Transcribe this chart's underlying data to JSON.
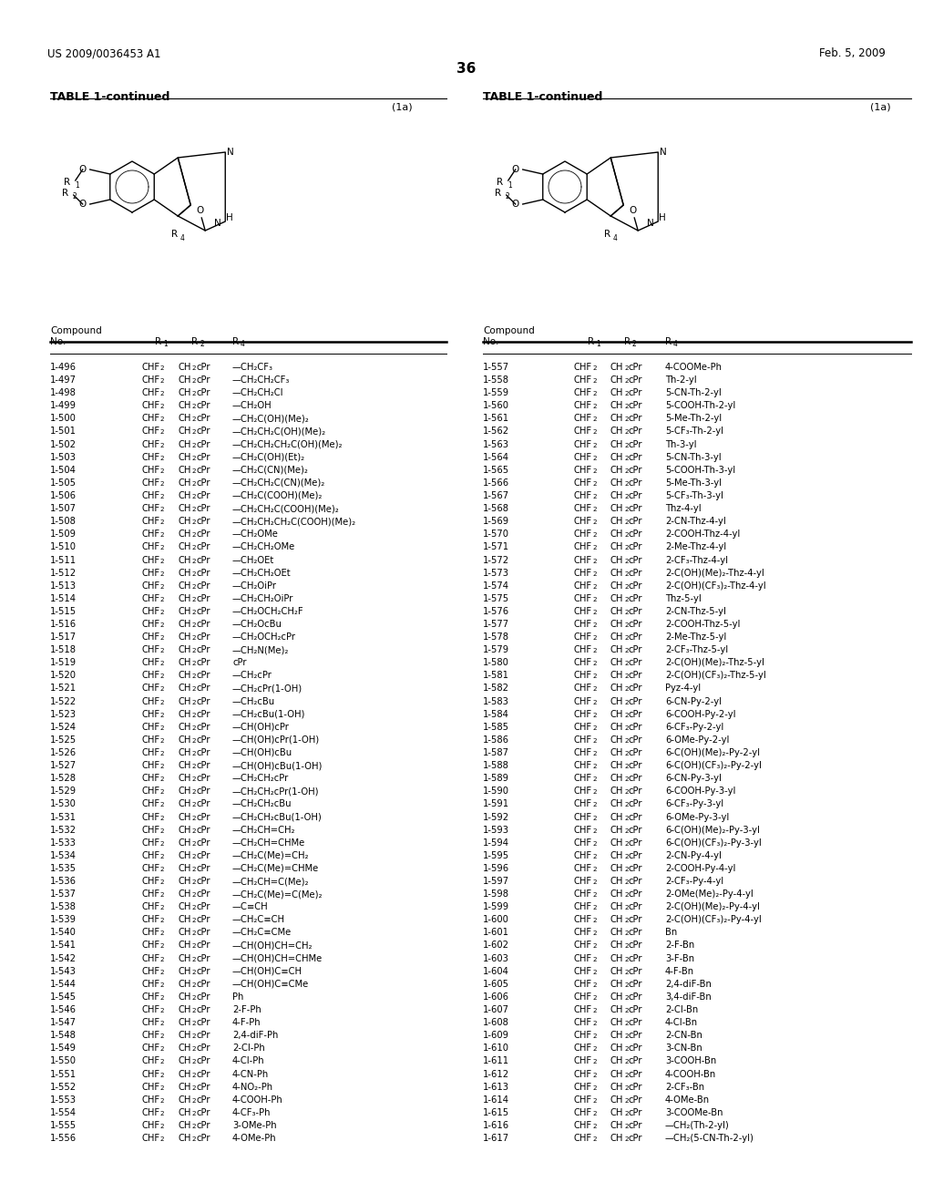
{
  "title_left": "US 2009/0036453 A1",
  "title_right": "Feb. 5, 2009",
  "page_number": "36",
  "table_title": "TABLE 1-continued",
  "formula_label": "(1a)",
  "left_compounds": [
    [
      "1-496",
      "—CH₂CF₃"
    ],
    [
      "1-497",
      "—CH₂CH₂CF₃"
    ],
    [
      "1-498",
      "—CH₂CH₂Cl"
    ],
    [
      "1-499",
      "—CH₂OH"
    ],
    [
      "1-500",
      "—CH₂C(OH)(Me)₂"
    ],
    [
      "1-501",
      "—CH₂CH₂C(OH)(Me)₂"
    ],
    [
      "1-502",
      "—CH₂CH₂CH₂C(OH)(Me)₂"
    ],
    [
      "1-503",
      "—CH₂C(OH)(Et)₂"
    ],
    [
      "1-504",
      "—CH₂C(CN)(Me)₂"
    ],
    [
      "1-505",
      "—CH₂CH₂C(CN)(Me)₂"
    ],
    [
      "1-506",
      "—CH₂C(COOH)(Me)₂"
    ],
    [
      "1-507",
      "—CH₂CH₂C(COOH)(Me)₂"
    ],
    [
      "1-508",
      "—CH₂CH₂CH₂C(COOH)(Me)₂"
    ],
    [
      "1-509",
      "—CH₂OMe"
    ],
    [
      "1-510",
      "—CH₂CH₂OMe"
    ],
    [
      "1-511",
      "—CH₂OEt"
    ],
    [
      "1-512",
      "—CH₂CH₂OEt"
    ],
    [
      "1-513",
      "—CH₂OiPr"
    ],
    [
      "1-514",
      "—CH₂CH₂OiPr"
    ],
    [
      "1-515",
      "—CH₂OCH₂CH₂F"
    ],
    [
      "1-516",
      "—CH₂OcBu"
    ],
    [
      "1-517",
      "—CH₂OCH₂cPr"
    ],
    [
      "1-518",
      "—CH₂N(Me)₂"
    ],
    [
      "1-519",
      "cPr"
    ],
    [
      "1-520",
      "—CH₂cPr"
    ],
    [
      "1-521",
      "—CH₂cPr(1-OH)"
    ],
    [
      "1-522",
      "—CH₂cBu"
    ],
    [
      "1-523",
      "—CH₂cBu(1-OH)"
    ],
    [
      "1-524",
      "—CH(OH)cPr"
    ],
    [
      "1-525",
      "—CH(OH)cPr(1-OH)"
    ],
    [
      "1-526",
      "—CH(OH)cBu"
    ],
    [
      "1-527",
      "—CH(OH)cBu(1-OH)"
    ],
    [
      "1-528",
      "—CH₂CH₂cPr"
    ],
    [
      "1-529",
      "—CH₂CH₂cPr(1-OH)"
    ],
    [
      "1-530",
      "—CH₂CH₂cBu"
    ],
    [
      "1-531",
      "—CH₂CH₂cBu(1-OH)"
    ],
    [
      "1-532",
      "—CH₂CH=CH₂"
    ],
    [
      "1-533",
      "—CH₂CH=CHMe"
    ],
    [
      "1-534",
      "—CH₂C(Me)=CH₂"
    ],
    [
      "1-535",
      "—CH₂C(Me)=CHMe"
    ],
    [
      "1-536",
      "—CH₂CH=C(Me)₂"
    ],
    [
      "1-537",
      "—CH₂C(Me)=C(Me)₂"
    ],
    [
      "1-538",
      "—C≡CH"
    ],
    [
      "1-539",
      "—CH₂C≡CH"
    ],
    [
      "1-540",
      "—CH₂C≡CMe"
    ],
    [
      "1-541",
      "—CH(OH)CH=CH₂"
    ],
    [
      "1-542",
      "—CH(OH)CH=CHMe"
    ],
    [
      "1-543",
      "—CH(OH)C≡CH"
    ],
    [
      "1-544",
      "—CH(OH)C≡CMe"
    ],
    [
      "1-545",
      "Ph"
    ],
    [
      "1-546",
      "2-F-Ph"
    ],
    [
      "1-547",
      "4-F-Ph"
    ],
    [
      "1-548",
      "2,4-diF-Ph"
    ],
    [
      "1-549",
      "2-Cl-Ph"
    ],
    [
      "1-550",
      "4-Cl-Ph"
    ],
    [
      "1-551",
      "4-CN-Ph"
    ],
    [
      "1-552",
      "4-NO₂-Ph"
    ],
    [
      "1-553",
      "4-COOH-Ph"
    ],
    [
      "1-554",
      "4-CF₃-Ph"
    ],
    [
      "1-555",
      "3-OMe-Ph"
    ],
    [
      "1-556",
      "4-OMe-Ph"
    ]
  ],
  "right_compounds": [
    [
      "1-557",
      "4-COOMe-Ph"
    ],
    [
      "1-558",
      "Th-2-yl"
    ],
    [
      "1-559",
      "5-CN-Th-2-yl"
    ],
    [
      "1-560",
      "5-COOH-Th-2-yl"
    ],
    [
      "1-561",
      "5-Me-Th-2-yl"
    ],
    [
      "1-562",
      "5-CF₃-Th-2-yl"
    ],
    [
      "1-563",
      "Th-3-yl"
    ],
    [
      "1-564",
      "5-CN-Th-3-yl"
    ],
    [
      "1-565",
      "5-COOH-Th-3-yl"
    ],
    [
      "1-566",
      "5-Me-Th-3-yl"
    ],
    [
      "1-567",
      "5-CF₃-Th-3-yl"
    ],
    [
      "1-568",
      "Thz-4-yl"
    ],
    [
      "1-569",
      "2-CN-Thz-4-yl"
    ],
    [
      "1-570",
      "2-COOH-Thz-4-yl"
    ],
    [
      "1-571",
      "2-Me-Thz-4-yl"
    ],
    [
      "1-572",
      "2-CF₃-Thz-4-yl"
    ],
    [
      "1-573",
      "2-C(OH)(Me)₂-Thz-4-yl"
    ],
    [
      "1-574",
      "2-C(OH)(CF₃)₂-Thz-4-yl"
    ],
    [
      "1-575",
      "Thz-5-yl"
    ],
    [
      "1-576",
      "2-CN-Thz-5-yl"
    ],
    [
      "1-577",
      "2-COOH-Thz-5-yl"
    ],
    [
      "1-578",
      "2-Me-Thz-5-yl"
    ],
    [
      "1-579",
      "2-CF₃-Thz-5-yl"
    ],
    [
      "1-580",
      "2-C(OH)(Me)₂-Thz-5-yl"
    ],
    [
      "1-581",
      "2-C(OH)(CF₃)₂-Thz-5-yl"
    ],
    [
      "1-582",
      "Pyz-4-yl"
    ],
    [
      "1-583",
      "6-CN-Py-2-yl"
    ],
    [
      "1-584",
      "6-COOH-Py-2-yl"
    ],
    [
      "1-585",
      "6-CF₃-Py-2-yl"
    ],
    [
      "1-586",
      "6-OMe-Py-2-yl"
    ],
    [
      "1-587",
      "6-C(OH)(Me)₂-Py-2-yl"
    ],
    [
      "1-588",
      "6-C(OH)(CF₃)₂-Py-2-yl"
    ],
    [
      "1-589",
      "6-CN-Py-3-yl"
    ],
    [
      "1-590",
      "6-COOH-Py-3-yl"
    ],
    [
      "1-591",
      "6-CF₃-Py-3-yl"
    ],
    [
      "1-592",
      "6-OMe-Py-3-yl"
    ],
    [
      "1-593",
      "6-C(OH)(Me)₂-Py-3-yl"
    ],
    [
      "1-594",
      "6-C(OH)(CF₃)₂-Py-3-yl"
    ],
    [
      "1-595",
      "2-CN-Py-4-yl"
    ],
    [
      "1-596",
      "2-COOH-Py-4-yl"
    ],
    [
      "1-597",
      "2-CF₃-Py-4-yl"
    ],
    [
      "1-598",
      "2-OMe(Me)₂-Py-4-yl"
    ],
    [
      "1-599",
      "2-C(OH)(Me)₂-Py-4-yl"
    ],
    [
      "1-600",
      "2-C(OH)(CF₃)₂-Py-4-yl"
    ],
    [
      "1-601",
      "Bn"
    ],
    [
      "1-602",
      "2-F-Bn"
    ],
    [
      "1-603",
      "3-F-Bn"
    ],
    [
      "1-604",
      "4-F-Bn"
    ],
    [
      "1-605",
      "2,4-diF-Bn"
    ],
    [
      "1-606",
      "3,4-diF-Bn"
    ],
    [
      "1-607",
      "2-Cl-Bn"
    ],
    [
      "1-608",
      "4-Cl-Bn"
    ],
    [
      "1-609",
      "2-CN-Bn"
    ],
    [
      "1-610",
      "3-CN-Bn"
    ],
    [
      "1-611",
      "3-COOH-Bn"
    ],
    [
      "1-612",
      "4-COOH-Bn"
    ],
    [
      "1-613",
      "2-CF₃-Bn"
    ],
    [
      "1-614",
      "4-OMe-Bn"
    ],
    [
      "1-615",
      "3-COOMe-Bn"
    ],
    [
      "1-616",
      "—CH₂(Th-2-yl)"
    ],
    [
      "1-617",
      "—CH₂(5-CN-Th-2-yl)"
    ]
  ],
  "bg_color": "#ffffff",
  "text_color": "#000000",
  "font_size": 7.2,
  "header_font_size": 8.0
}
